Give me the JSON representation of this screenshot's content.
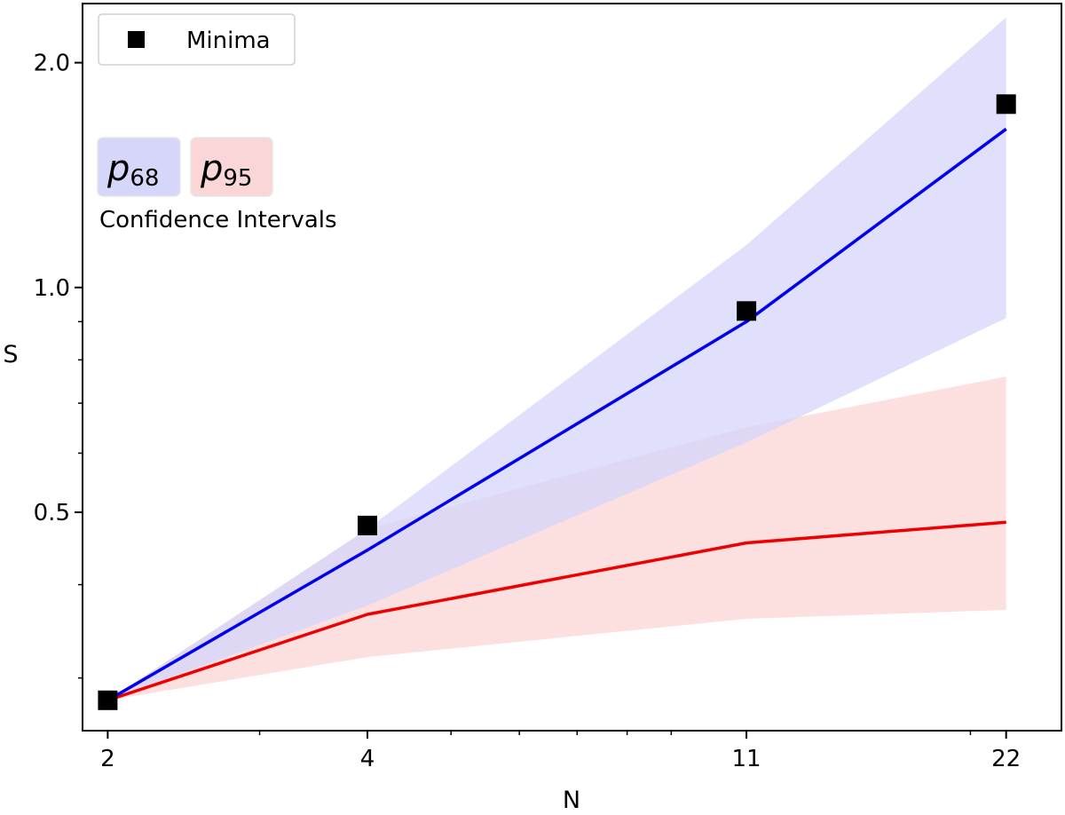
{
  "chart_data": {
    "type": "line",
    "xscale": "log",
    "yscale": "log",
    "x": [
      2,
      4,
      11,
      22
    ],
    "xticks": [
      "2",
      "4",
      "11",
      "22"
    ],
    "yticks": [
      {
        "value": 0.5,
        "label": "0.5"
      },
      {
        "value": 1.0,
        "label": "1.0"
      },
      {
        "value": 2.0,
        "label": "2.0"
      }
    ],
    "xlim": [
      1.87,
      25.5
    ],
    "ylim": [
      0.255,
      2.4
    ],
    "xlabel": "N",
    "ylabel": "S",
    "series": [
      {
        "name": "p68",
        "color": "#0000ee",
        "band_color": "#d6d6fb",
        "values": [
          0.28,
          0.445,
          0.9,
          1.63
        ],
        "lower": [
          0.28,
          0.375,
          0.62,
          0.91
        ],
        "upper": [
          0.28,
          0.475,
          1.14,
          2.3
        ]
      },
      {
        "name": "p95",
        "color": "#ee0000",
        "band_color": "#fbd6d6",
        "values": [
          0.28,
          0.365,
          0.455,
          0.485
        ],
        "lower": [
          0.28,
          0.32,
          0.36,
          0.37
        ],
        "upper": [
          0.28,
          0.475,
          0.65,
          0.76
        ]
      }
    ],
    "markers": {
      "name": "Minima",
      "x": [
        2,
        4,
        11,
        22
      ],
      "y": [
        0.28,
        0.48,
        0.93,
        1.76
      ]
    },
    "legend": {
      "position": "top-left",
      "entries": [
        "Minima"
      ]
    },
    "ci_legend": {
      "p68": {
        "symbol": "p",
        "subscript": "68"
      },
      "p95": {
        "symbol": "p",
        "subscript": "95"
      },
      "caption": "Confidence Intervals"
    }
  }
}
